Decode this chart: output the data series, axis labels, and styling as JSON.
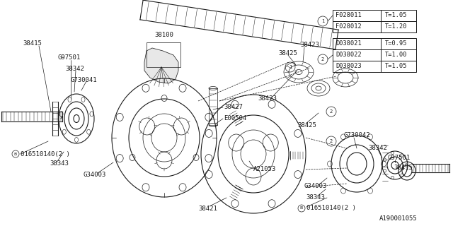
{
  "bg_color": "#ffffff",
  "line_color": "#1a1a1a",
  "fig_width": 6.4,
  "fig_height": 3.2,
  "dpi": 100,
  "table1_parts": [
    "F028011",
    "F028012"
  ],
  "table1_vals": [
    "T=1.05",
    "T=1.20"
  ],
  "table2_parts": [
    "D038021",
    "D038022",
    "D038023"
  ],
  "table2_vals": [
    "T=0.95",
    "T=1.00",
    "T=1.05"
  ],
  "part_number_bottom": "A190001055"
}
